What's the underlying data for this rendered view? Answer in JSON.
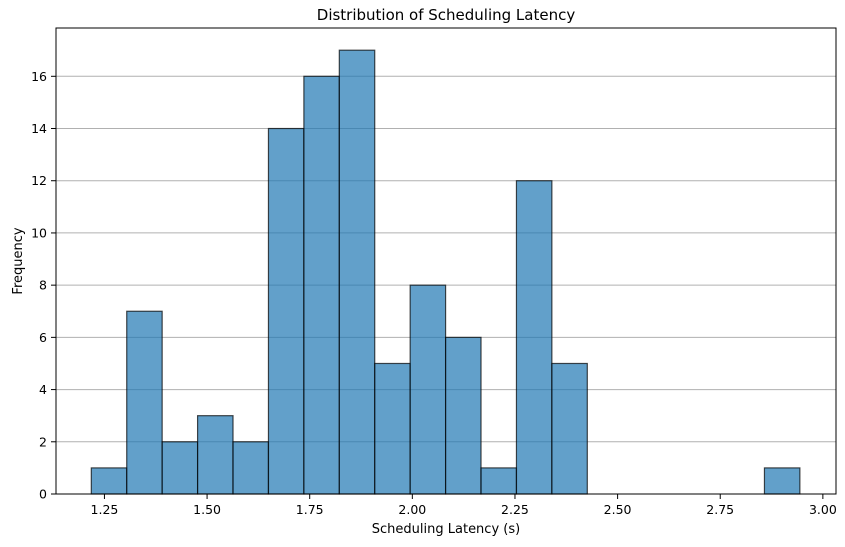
{
  "chart_data": {
    "type": "bar",
    "subtype": "histogram",
    "title": "Distribution of Scheduling Latency",
    "xlabel": "Scheduling Latency (s)",
    "ylabel": "Frequency",
    "bin_start": 1.218,
    "bin_width": 0.0863,
    "counts": [
      1,
      7,
      2,
      3,
      2,
      14,
      16,
      17,
      5,
      8,
      6,
      1,
      12,
      5,
      0,
      0,
      0,
      0,
      0,
      1
    ],
    "xlim": [
      1.132,
      3.032
    ],
    "ylim": [
      0,
      17.85
    ],
    "xticks": [
      1.25,
      1.5,
      1.75,
      2.0,
      2.25,
      2.5,
      2.75,
      3.0
    ],
    "xtick_labels": [
      "1.25",
      "1.50",
      "1.75",
      "2.00",
      "2.25",
      "2.50",
      "2.75",
      "3.00"
    ],
    "yticks": [
      0,
      2,
      4,
      6,
      8,
      10,
      12,
      14,
      16
    ],
    "ytick_labels": [
      "0",
      "2",
      "4",
      "6",
      "8",
      "10",
      "12",
      "14",
      "16"
    ],
    "grid": "y",
    "bar_color": "#1f77b4",
    "bar_alpha": 0.7,
    "edge_color": "#000000"
  }
}
